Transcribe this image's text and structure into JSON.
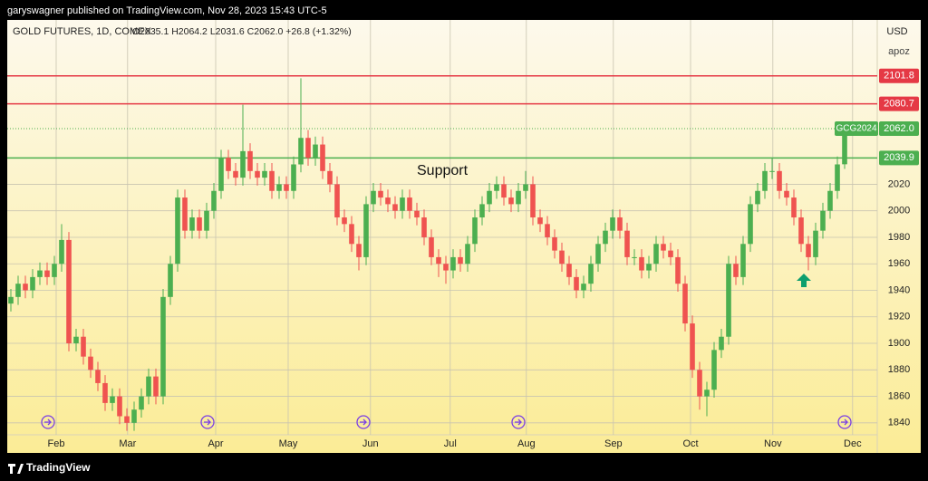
{
  "header": {
    "byline": "garyswagner published on TradingView.com, Nov 28, 2023 15:43 UTC-5"
  },
  "footer": {
    "brand": "TradingView"
  },
  "chart_data": {
    "type": "candlestick",
    "title": "GOLD FUTURES, 1D, COMEX",
    "ohlc_text": "O2035.1  H2064.2  L2031.6  C2062.0  +26.8 (+1.32%)",
    "currency": "USD",
    "scale_label": "apoz",
    "annotation": "Support",
    "up_color": "#4caf50",
    "down_color": "#ef5350",
    "grid": true,
    "xlim": [
      -0.5,
      119.5
    ],
    "xticks": [
      {
        "value": 6.25,
        "label": "Feb"
      },
      {
        "value": 16.1,
        "label": "Mar"
      },
      {
        "value": 28.25,
        "label": "Apr"
      },
      {
        "value": 38.25,
        "label": "May"
      },
      {
        "value": 49.6,
        "label": "Jun"
      },
      {
        "value": 60.6,
        "label": "Jul"
      },
      {
        "value": 71.1,
        "label": "Aug"
      },
      {
        "value": 83.1,
        "label": "Sep"
      },
      {
        "value": 93.75,
        "label": "Oct"
      },
      {
        "value": 105.1,
        "label": "Nov"
      },
      {
        "value": 116.1,
        "label": "Dec"
      }
    ],
    "ylim": [
      1831,
      2144
    ],
    "yticks": [
      1840,
      1860,
      1880,
      1900,
      1920,
      1940,
      1960,
      1980,
      2000,
      2020
    ],
    "levels": [
      {
        "value": 2101.8,
        "color": "#e53945"
      },
      {
        "value": 2080.7,
        "color": "#e53945"
      },
      {
        "value": 2039.9,
        "color": "#4caf50"
      }
    ],
    "last_price": {
      "name": "GCG2024",
      "value": {
        "value": 2062,
        "label": "2062.0"
      },
      "color": "#4caf50"
    },
    "open": [
      1930,
      1935,
      1945,
      1940,
      1950,
      1955,
      1950,
      1960,
      1978,
      1900,
      1905,
      1890,
      1880,
      1870,
      1855,
      1860,
      1845,
      1840,
      1850,
      1860,
      1875,
      1860,
      1935,
      1960,
      2010,
      1985,
      1995,
      1985,
      2000,
      2015,
      2040,
      2030,
      2025,
      2045,
      2030,
      2025,
      2030,
      2015,
      2020,
      2015,
      2035,
      2055,
      2040,
      2050,
      2030,
      2020,
      1995,
      1990,
      1975,
      1965,
      2005,
      2015,
      2010,
      2005,
      2000,
      2010,
      2000,
      1995,
      1980,
      1965,
      1960,
      1955,
      1965,
      1960,
      1975,
      1995,
      2005,
      2015,
      2020,
      2010,
      2005,
      2015,
      2020,
      1995,
      1990,
      1980,
      1970,
      1960,
      1950,
      1940,
      1945,
      1960,
      1975,
      1985,
      1995,
      1985,
      1965,
      1965,
      1955,
      1960,
      1975,
      1970,
      1965,
      1945,
      1915,
      1880,
      1860,
      1865,
      1895,
      1905,
      1960,
      1950,
      1975,
      2005,
      2015,
      2030,
      2030,
      2015,
      2010,
      1995,
      1975,
      1965,
      1985,
      2000,
      2015,
      2035.1
    ],
    "high": [
      1941,
      1951,
      1951,
      1956,
      1961,
      1961,
      1966,
      1990,
      1984,
      1911,
      1911,
      1896,
      1886,
      1876,
      1866,
      1866,
      1851,
      1856,
      1866,
      1881,
      1881,
      1941,
      1966,
      2016,
      2016,
      2001,
      2001,
      2006,
      2021,
      2046,
      2046,
      2036,
      2080,
      2051,
      2036,
      2036,
      2036,
      2026,
      2026,
      2041,
      2100,
      2061,
      2056,
      2056,
      2036,
      2026,
      2001,
      1996,
      1981,
      2011,
      2021,
      2021,
      2016,
      2011,
      2016,
      2016,
      2006,
      2001,
      1986,
      1971,
      1966,
      1971,
      1971,
      1981,
      2001,
      2011,
      2021,
      2026,
      2026,
      2016,
      2021,
      2030,
      2026,
      2001,
      1996,
      1986,
      1976,
      1966,
      1956,
      1951,
      1966,
      1981,
      1991,
      2001,
      2001,
      1991,
      1971,
      1971,
      1966,
      1981,
      1981,
      1976,
      1971,
      1951,
      1921,
      1886,
      1871,
      1901,
      1911,
      1966,
      1966,
      1981,
      2011,
      2021,
      2036,
      2040,
      2036,
      2021,
      2016,
      2001,
      1981,
      1991,
      2006,
      2021,
      2041,
      2064.2
    ],
    "low": [
      1924,
      1929,
      1934,
      1934,
      1944,
      1944,
      1944,
      1954,
      1894,
      1894,
      1884,
      1874,
      1864,
      1849,
      1849,
      1839,
      1834,
      1834,
      1844,
      1854,
      1854,
      1854,
      1929,
      1954,
      1979,
      1979,
      1979,
      1979,
      1994,
      2009,
      2024,
      2019,
      2019,
      2024,
      2019,
      2019,
      2009,
      2009,
      2009,
      2009,
      2029,
      2034,
      2034,
      2024,
      2014,
      1989,
      1984,
      1969,
      1955,
      1959,
      1999,
      2004,
      1999,
      1994,
      1994,
      1994,
      1989,
      1974,
      1959,
      1950,
      1945,
      1949,
      1954,
      1954,
      1969,
      1989,
      1999,
      2009,
      2004,
      1999,
      1999,
      2009,
      1989,
      1984,
      1974,
      1964,
      1954,
      1944,
      1934,
      1934,
      1939,
      1954,
      1969,
      1979,
      1979,
      1959,
      1959,
      1949,
      1949,
      1954,
      1964,
      1959,
      1939,
      1909,
      1874,
      1850,
      1845,
      1859,
      1889,
      1899,
      1944,
      1944,
      1969,
      1999,
      2009,
      2024,
      2009,
      2004,
      1989,
      1969,
      1955,
      1959,
      1979,
      1994,
      2009,
      2031.6
    ],
    "close": [
      1935,
      1945,
      1940,
      1950,
      1955,
      1950,
      1960,
      1978,
      1900,
      1905,
      1890,
      1880,
      1870,
      1855,
      1860,
      1845,
      1840,
      1850,
      1860,
      1875,
      1860,
      1935,
      1960,
      2010,
      1985,
      1995,
      1985,
      2000,
      2015,
      2040,
      2030,
      2025,
      2045,
      2030,
      2025,
      2030,
      2015,
      2020,
      2015,
      2035,
      2055,
      2040,
      2050,
      2030,
      2020,
      1995,
      1990,
      1975,
      1965,
      2005,
      2015,
      2010,
      2005,
      2000,
      2010,
      2000,
      1995,
      1980,
      1965,
      1960,
      1955,
      1965,
      1960,
      1975,
      1995,
      2005,
      2015,
      2020,
      2010,
      2005,
      2015,
      2020,
      1995,
      1990,
      1980,
      1970,
      1960,
      1950,
      1940,
      1945,
      1960,
      1975,
      1985,
      1995,
      1985,
      1965,
      1965,
      1955,
      1960,
      1975,
      1970,
      1965,
      1945,
      1915,
      1880,
      1860,
      1865,
      1895,
      1905,
      1960,
      1950,
      1975,
      2005,
      2015,
      2030,
      2030,
      2015,
      2010,
      1995,
      1975,
      1965,
      1985,
      2000,
      2015,
      2035,
      2062
    ]
  }
}
